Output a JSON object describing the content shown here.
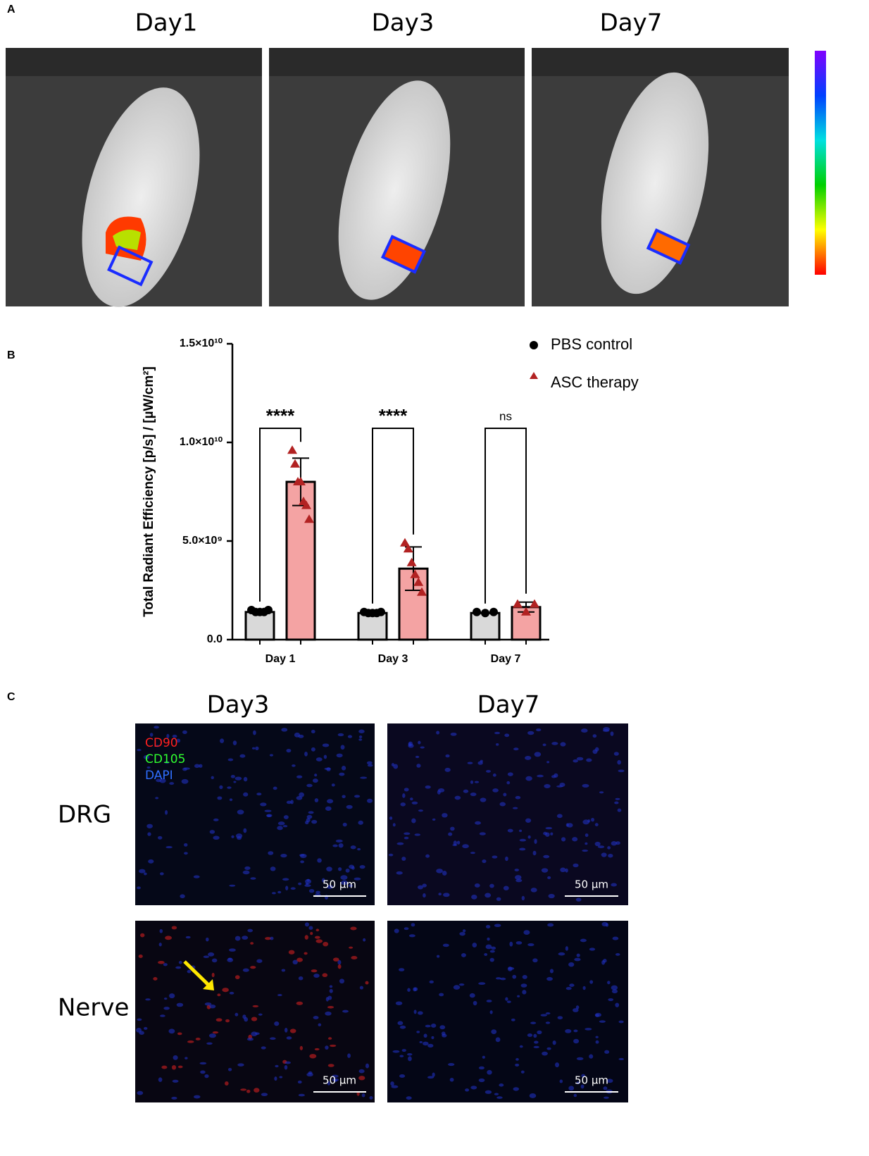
{
  "panel_a": {
    "label": "A",
    "titles": [
      "Day1",
      "Day3",
      "Day7"
    ]
  },
  "chart_data": {
    "type": "bar",
    "panel_label": "B",
    "ylabel": "Total Radiant Efficiency [p/s] / [µW/cm²]",
    "categories": [
      "Day 1",
      "Day 3",
      "Day 7"
    ],
    "ylim": [
      0,
      15000000000
    ],
    "yticks": [
      {
        "value": 0,
        "label": "0.0"
      },
      {
        "value": 5000000000,
        "label": "5.0×10⁹"
      },
      {
        "value": 10000000000,
        "label": "1.0×10¹⁰"
      },
      {
        "value": 15000000000,
        "label": "1.5×10¹⁰"
      }
    ],
    "series": [
      {
        "name": "PBS control",
        "color": "#d9d9d9",
        "marker_color": "#000000",
        "marker": "circle",
        "values": [
          1400000000,
          1350000000,
          1350000000
        ],
        "points": [
          [
            1500000000,
            1400000000,
            1400000000,
            1400000000,
            1500000000
          ],
          [
            1400000000,
            1350000000,
            1350000000,
            1350000000,
            1400000000
          ],
          [
            1400000000,
            1350000000,
            1400000000
          ]
        ]
      },
      {
        "name": "ASC therapy",
        "color": "#f4a3a3",
        "marker_color": "#b22222",
        "marker": "triangle",
        "values": [
          8000000000,
          3600000000,
          1650000000
        ],
        "errors": [
          1200000000,
          1100000000,
          250000000
        ],
        "points": [
          [
            9600000000,
            8900000000,
            8000000000,
            8000000000,
            7000000000,
            6800000000,
            6100000000
          ],
          [
            4900000000,
            4600000000,
            3900000000,
            3300000000,
            2900000000,
            2400000000
          ],
          [
            1800000000,
            1400000000,
            1800000000
          ]
        ]
      }
    ],
    "annotations": [
      "****",
      "****",
      "ns"
    ],
    "legend": "top-right"
  },
  "panel_c": {
    "label": "C",
    "columns": [
      "Day3",
      "Day7"
    ],
    "rows": [
      "DRG",
      "Nerve"
    ],
    "stains": [
      "CD90",
      "CD105",
      "DAPI"
    ],
    "scale_bar": "50 µm"
  }
}
